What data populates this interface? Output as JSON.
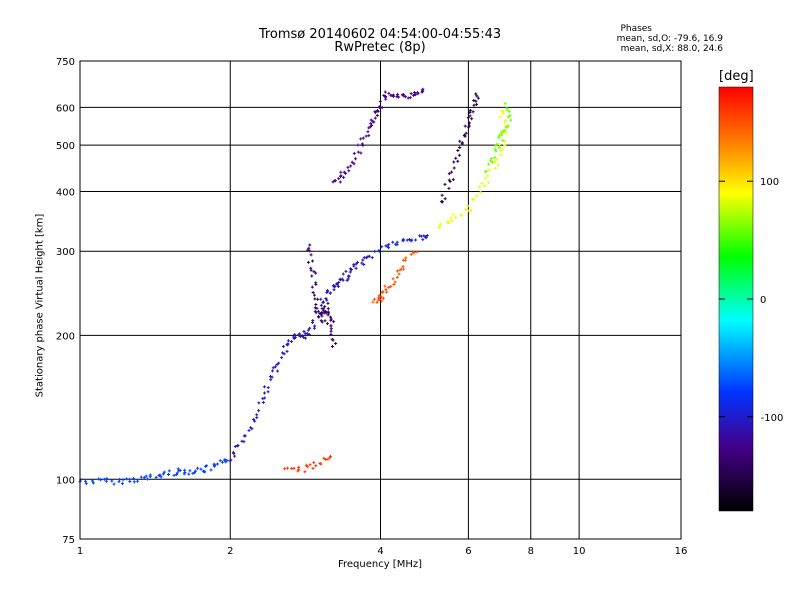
{
  "title_line1": "Tromsø 20140602 04:54:00-04:55:43",
  "title_line2": "RwPretec (8p)",
  "phases": {
    "heading": "Phases",
    "line_o": "mean, sd,O: -79.6, 16.9",
    "line_x": "mean, sd,X:  88.0, 24.6"
  },
  "colorbar": {
    "unit": "[deg]",
    "ticks": [
      100,
      0,
      -100
    ],
    "min": -180,
    "max": 180
  },
  "chart_data": {
    "type": "scatter",
    "xlabel": "Frequency [MHz]",
    "ylabel": "Stationary phase Virtual Height [km]",
    "xscale": "log",
    "yscale": "log",
    "xlim": [
      1,
      16
    ],
    "ylim": [
      75,
      750
    ],
    "xticks": [
      1,
      2,
      4,
      6,
      8,
      10,
      16
    ],
    "yticks": [
      75,
      100,
      200,
      300,
      400,
      500,
      600,
      750
    ],
    "grid": true,
    "traces": [
      {
        "name": "",
        "phase": -75,
        "points": [
          [
            1.0,
            99
          ],
          [
            1.1,
            99
          ],
          [
            1.2,
            99
          ],
          [
            1.3,
            100
          ],
          [
            1.4,
            101
          ],
          [
            1.5,
            103
          ],
          [
            1.6,
            104
          ],
          [
            1.7,
            104
          ],
          [
            1.8,
            105
          ],
          [
            1.9,
            107
          ],
          [
            2.0,
            110
          ]
        ]
      },
      {
        "name": "",
        "phase": -105,
        "points": [
          [
            2.0,
            110
          ],
          [
            2.1,
            118
          ],
          [
            2.2,
            130
          ],
          [
            2.3,
            145
          ],
          [
            2.4,
            160
          ],
          [
            2.5,
            175
          ],
          [
            2.6,
            190
          ],
          [
            2.7,
            198
          ],
          [
            2.8,
            200
          ]
        ]
      },
      {
        "name": "",
        "phase": -110,
        "points": [
          [
            2.8,
            200
          ],
          [
            2.9,
            205
          ],
          [
            3.0,
            225
          ],
          [
            3.1,
            240
          ],
          [
            3.2,
            250
          ],
          [
            3.3,
            255
          ],
          [
            3.4,
            265
          ],
          [
            3.5,
            275
          ],
          [
            3.7,
            285
          ],
          [
            3.9,
            295
          ]
        ]
      },
      {
        "name": "",
        "phase": -95,
        "points": [
          [
            3.9,
            300
          ],
          [
            4.2,
            310
          ],
          [
            4.5,
            315
          ],
          [
            4.8,
            320
          ],
          [
            5.0,
            325
          ]
        ]
      },
      {
        "name": "",
        "phase": -140,
        "points": [
          [
            2.88,
            310
          ],
          [
            2.92,
            280
          ],
          [
            2.96,
            250
          ],
          [
            3.0,
            225
          ],
          [
            3.05,
            215
          ],
          [
            3.1,
            230
          ],
          [
            3.15,
            220
          ],
          [
            3.2,
            205
          ],
          [
            3.25,
            185
          ]
        ]
      },
      {
        "name": "",
        "phase": -125,
        "points": [
          [
            3.25,
            420
          ],
          [
            3.35,
            430
          ],
          [
            3.5,
            460
          ],
          [
            3.65,
            500
          ],
          [
            3.8,
            540
          ],
          [
            3.9,
            570
          ],
          [
            4.0,
            600
          ],
          [
            4.1,
            640
          ],
          [
            4.3,
            640
          ],
          [
            4.5,
            630
          ],
          [
            4.7,
            640
          ],
          [
            4.9,
            650
          ]
        ]
      },
      {
        "name": "",
        "phase": -150,
        "points": [
          [
            5.3,
            380
          ],
          [
            5.5,
            420
          ],
          [
            5.7,
            470
          ],
          [
            5.9,
            520
          ],
          [
            6.0,
            560
          ],
          [
            6.15,
            600
          ],
          [
            6.3,
            650
          ]
        ]
      },
      {
        "name": "",
        "phase": 150,
        "points": [
          [
            3.9,
            235
          ],
          [
            4.0,
            240
          ],
          [
            4.1,
            250
          ],
          [
            4.3,
            265
          ],
          [
            4.5,
            285
          ],
          [
            4.7,
            300
          ]
        ]
      },
      {
        "name": "",
        "phase": 85,
        "points": [
          [
            5.2,
            340
          ],
          [
            5.6,
            350
          ],
          [
            6.0,
            370
          ],
          [
            6.4,
            410
          ],
          [
            6.8,
            450
          ],
          [
            7.0,
            500
          ],
          [
            7.1,
            550
          ],
          [
            6.9,
            600
          ]
        ]
      },
      {
        "name": "",
        "phase": 60,
        "points": [
          [
            6.5,
            440
          ],
          [
            6.8,
            480
          ],
          [
            7.0,
            520
          ],
          [
            7.2,
            560
          ],
          [
            7.1,
            620
          ]
        ]
      },
      {
        "name": "",
        "phase": 160,
        "points": [
          [
            2.6,
            104
          ],
          [
            2.8,
            105
          ],
          [
            3.0,
            108
          ],
          [
            3.2,
            112
          ]
        ]
      }
    ]
  }
}
